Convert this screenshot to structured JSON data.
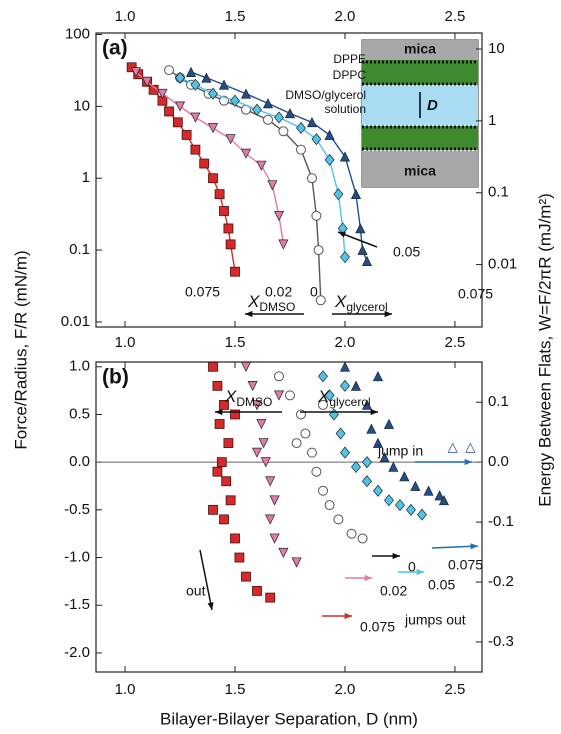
{
  "chart_data": [
    {
      "type": "scatter",
      "panel_label": "(a)",
      "log_y": true,
      "lines": true,
      "ylabel": "Force/Radius, F/R (mN/m)",
      "y2label": "Energy Between Flats, W=F/2πR (mJ/m²)",
      "xlim": [
        0.868,
        2.623
      ],
      "xticks": [
        {
          "value": 1,
          "label": "1.0"
        },
        1.5,
        {
          "value": 2,
          "label": "2.0"
        },
        2.5
      ],
      "ylim": [
        0.0085,
        105
      ],
      "yticks": [
        100,
        10,
        1,
        0.1,
        0.01
      ],
      "y2lim": [
        0.001353,
        16.71
      ],
      "y2ticks": [
        10,
        1,
        0.1,
        0.01
      ],
      "series": [
        {
          "name": "0.075",
          "color": "#d62a2a",
          "marker": "square",
          "x": [
            1.03,
            1.06,
            1.1,
            1.13,
            1.17,
            1.2,
            1.24,
            1.28,
            1.32,
            1.36,
            1.4,
            1.43,
            1.45,
            1.47,
            1.48,
            1.5
          ],
          "values": [
            35,
            28,
            22,
            17,
            12,
            8.5,
            6,
            4,
            2.5,
            1.6,
            1,
            0.6,
            0.35,
            0.2,
            0.12,
            0.05
          ]
        },
        {
          "name": "0.02",
          "color": "#e07aa8",
          "marker": "tri-down",
          "x": [
            1.05,
            1.1,
            1.17,
            1.25,
            1.32,
            1.4,
            1.48,
            1.55,
            1.62,
            1.67,
            1.7,
            1.72
          ],
          "values": [
            30,
            22,
            15,
            10,
            7,
            5,
            3.5,
            2.2,
            1.5,
            0.8,
            0.3,
            0.12
          ]
        },
        {
          "name": "0",
          "color": "#555555",
          "marker": "circle-open",
          "x": [
            1.2,
            1.25,
            1.3,
            1.38,
            1.45,
            1.55,
            1.65,
            1.72,
            1.8,
            1.85,
            1.87,
            1.88,
            1.89
          ],
          "values": [
            32,
            25,
            20,
            15,
            12,
            9,
            6.5,
            4.5,
            2.5,
            1,
            0.3,
            0.1,
            0.02
          ]
        },
        {
          "name": "0.05",
          "color": "#4fc3e8",
          "marker": "diamond",
          "x": [
            1.25,
            1.32,
            1.4,
            1.5,
            1.6,
            1.7,
            1.8,
            1.87,
            1.93,
            1.97,
            1.99,
            2.0
          ],
          "values": [
            25,
            20,
            15,
            12,
            9,
            7,
            5,
            3.5,
            1.8,
            0.6,
            0.2,
            0.08
          ]
        },
        {
          "name": "0.075",
          "color": "#1f4f8f",
          "marker": "tri-up",
          "x": [
            1.3,
            1.37,
            1.45,
            1.55,
            1.65,
            1.75,
            1.85,
            1.93,
            2.0,
            2.05,
            2.07,
            2.08,
            2.1
          ],
          "values": [
            30,
            25,
            20,
            15,
            11,
            8,
            6,
            4,
            2,
            0.6,
            0.2,
            0.1,
            0.07
          ]
        }
      ],
      "x_labels": [
        {
          "text": "X",
          "sub": "DMSO"
        },
        {
          "text": "X",
          "sub": "glycerol"
        }
      ],
      "annotations": [
        "mica",
        "DPPE",
        "DPPC",
        "DMSO/glycerol",
        "solution",
        "D",
        "mica"
      ]
    },
    {
      "type": "scatter",
      "panel_label": "(b)",
      "log_y": false,
      "lines": false,
      "xlabel": "Bilayer-Bilayer Separation, D (nm)",
      "xlim": [
        0.868,
        2.623
      ],
      "xticks": [
        {
          "value": 1,
          "label": "1.0"
        },
        1.5,
        {
          "value": 2,
          "label": "2.0"
        },
        2.5
      ],
      "ylim": [
        -2.2,
        1.05
      ],
      "yticks": [
        {
          "value": 1,
          "label": "1.0"
        },
        0.5,
        {
          "value": 0,
          "label": "0.0"
        },
        -0.5,
        {
          "value": -1,
          "label": "-1.0"
        },
        -1.5,
        {
          "value": -2,
          "label": "-2.0"
        }
      ],
      "y2lim": [
        -0.3501,
        0.1671
      ],
      "y2ticks": [
        0.1,
        {
          "value": 0,
          "label": "0.0"
        },
        -0.1,
        -0.2,
        -0.3
      ],
      "series": [
        {
          "name": "0.075",
          "color": "#d62a2a",
          "marker": "square",
          "x": [
            1.4,
            1.42,
            1.45,
            1.43,
            1.47,
            1.44,
            1.46,
            1.48,
            1.45,
            1.5,
            1.52,
            1.55,
            1.6,
            1.66,
            1.42,
            1.5,
            1.4
          ],
          "values": [
            1.0,
            0.8,
            0.6,
            0.4,
            0.2,
            0.0,
            -0.2,
            -0.4,
            -0.6,
            -0.8,
            -1.0,
            -1.2,
            -1.35,
            -1.42,
            -0.1,
            0.5,
            -0.5
          ]
        },
        {
          "name": "0.02",
          "color": "#e07aa8",
          "marker": "tri-down",
          "x": [
            1.55,
            1.58,
            1.6,
            1.62,
            1.63,
            1.64,
            1.66,
            1.68,
            1.66,
            1.68,
            1.72,
            1.78,
            1.6,
            1.7
          ],
          "values": [
            1.0,
            0.8,
            0.6,
            0.4,
            0.2,
            0.0,
            -0.2,
            -0.4,
            -0.6,
            -0.8,
            -0.95,
            -1.05,
            0.1,
            0.7
          ]
        },
        {
          "name": "0",
          "color": "#555555",
          "marker": "circle-open",
          "x": [
            1.7,
            1.75,
            1.8,
            1.82,
            1.85,
            1.87,
            1.9,
            1.93,
            1.97,
            2.03,
            2.08,
            1.78,
            1.9
          ],
          "values": [
            0.9,
            0.7,
            0.5,
            0.3,
            0.1,
            -0.1,
            -0.3,
            -0.45,
            -0.6,
            -0.75,
            -0.8,
            0.2,
            0.6
          ]
        },
        {
          "name": "0.05",
          "color": "#4fc3e8",
          "marker": "diamond",
          "x": [
            1.9,
            1.93,
            1.95,
            1.98,
            2.0,
            2.05,
            2.1,
            2.15,
            2.2,
            2.25,
            2.3,
            2.35,
            2.0,
            2.1
          ],
          "values": [
            0.9,
            0.7,
            0.5,
            0.3,
            0.1,
            -0.05,
            -0.2,
            -0.3,
            -0.4,
            -0.45,
            -0.5,
            -0.55,
            0.8,
            0.0
          ]
        },
        {
          "name": "0.075",
          "color": "#1f4f8f",
          "marker": "tri-up",
          "x": [
            2.0,
            2.05,
            2.1,
            2.12,
            2.15,
            2.18,
            2.22,
            2.27,
            2.32,
            2.38,
            2.43,
            2.45,
            2.2,
            2.15,
            2.49,
            2.57
          ],
          "values": [
            1.0,
            0.8,
            0.6,
            0.35,
            0.2,
            0.05,
            -0.05,
            -0.15,
            -0.25,
            -0.3,
            -0.35,
            -0.4,
            0.4,
            0.9,
            0.15,
            0.15
          ]
        }
      ],
      "x_labels": [
        {
          "text": "X",
          "sub": "DMSO"
        },
        {
          "text": "X",
          "sub": "glycerol"
        }
      ],
      "annotations": [
        "jump in",
        "out",
        "jumps out"
      ]
    }
  ]
}
